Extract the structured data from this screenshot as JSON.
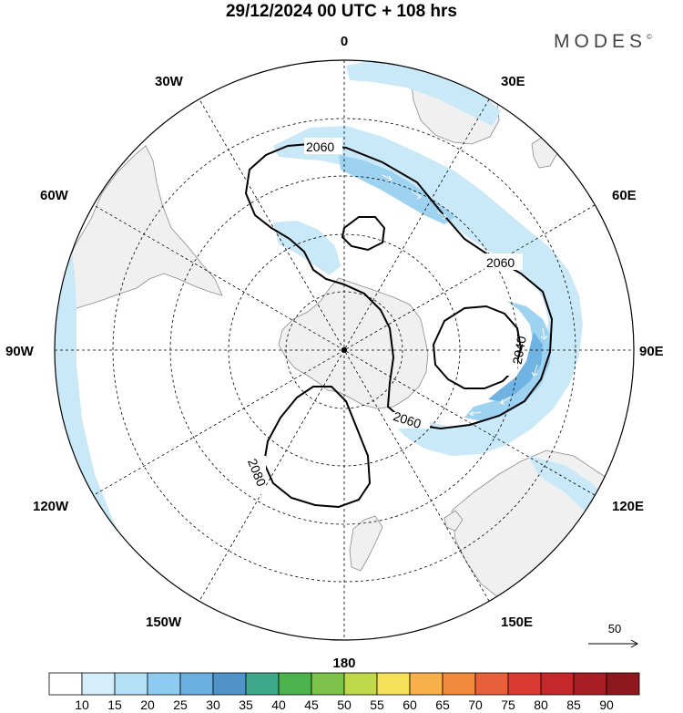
{
  "title": "29/12/2024  00 UTC  + 108 hrs",
  "brand": "MODES",
  "brand_mark": "©",
  "longitude_labels": {
    "n": "0",
    "ne30": "30E",
    "ne60": "60E",
    "e": "90E",
    "se120": "120E",
    "se150": "150E",
    "s": "180",
    "sw150": "150W",
    "sw120": "120W",
    "w": "90W",
    "nw60": "60W",
    "nw30": "30W"
  },
  "contour_labels": [
    "2060",
    "2060",
    "2060",
    "2040",
    "2080"
  ],
  "vector_reference": {
    "value": "50"
  },
  "colorbar": {
    "labels": [
      "10",
      "15",
      "20",
      "25",
      "30",
      "35",
      "40",
      "45",
      "50",
      "55",
      "60",
      "65",
      "70",
      "75",
      "80",
      "85",
      "90"
    ],
    "colors": [
      "#ffffff",
      "#d4eefb",
      "#b4e0f7",
      "#8ecbf0",
      "#6ab0e0",
      "#4f93c9",
      "#3fa78a",
      "#4cb24d",
      "#7cc24a",
      "#c0d94a",
      "#f5e05a",
      "#f7b04a",
      "#f28a3c",
      "#e8603a",
      "#db3b33",
      "#c4282b",
      "#a81e24",
      "#8c171c"
    ]
  },
  "map_style": {
    "land": "#f0f0f0",
    "ocean": "#ffffff",
    "jet_light": "#c9e8f8",
    "jet_mid": "#9dd2f0",
    "jet_strong": "#6fb3e2",
    "contour": "#000000",
    "grid": "#000000"
  }
}
